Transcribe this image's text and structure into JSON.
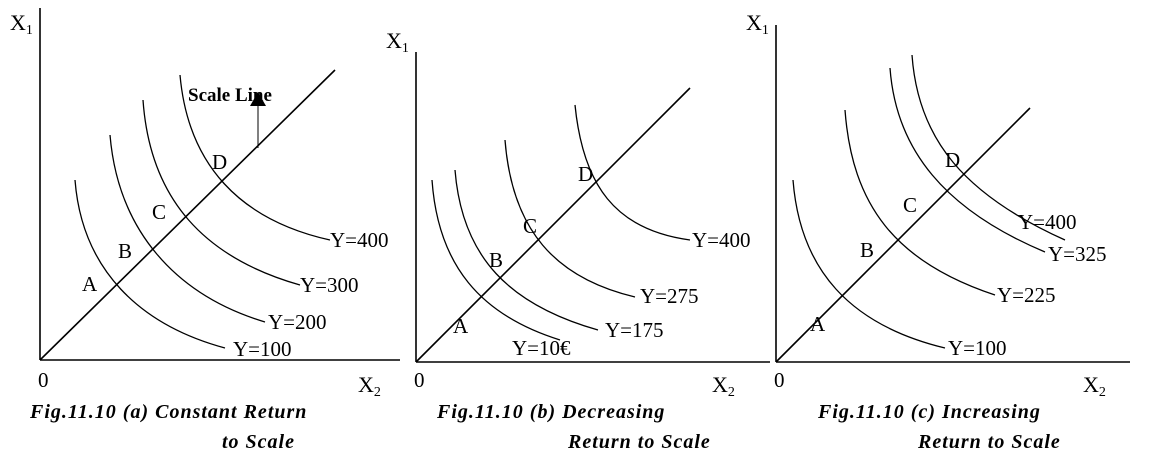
{
  "panels": [
    {
      "id": "a",
      "y_axis_label": "X",
      "y_axis_sub": "1",
      "x_axis_label": "X",
      "x_axis_sub": "2",
      "origin_label": "0",
      "points": [
        "A",
        "B",
        "C",
        "D"
      ],
      "curve_labels": [
        "Y=100",
        "Y=200",
        "Y=300",
        "Y=400"
      ],
      "caption_line1": "Fig.11.10 (a) Constant Return",
      "caption_line2": "to Scale",
      "scale_line_label": "Scale Line"
    },
    {
      "id": "b",
      "y_axis_label": "X",
      "y_axis_sub": "1",
      "x_axis_label": "X",
      "x_axis_sub": "2",
      "origin_label": "0",
      "points": [
        "A",
        "B",
        "C",
        "D"
      ],
      "curve_labels": [
        "Y=10€",
        "Y=175",
        "Y=275",
        "Y=400"
      ],
      "caption_line1": "Fig.11.10 (b) Decreasing",
      "caption_line2": "Return to Scale"
    },
    {
      "id": "c",
      "y_axis_label": "X",
      "y_axis_sub": "1",
      "x_axis_label": "X",
      "x_axis_sub": "2",
      "origin_label": "0",
      "points": [
        "A",
        "B",
        "C",
        "D"
      ],
      "curve_labels": [
        "Y=100",
        "Y=225",
        "Y=325",
        "Y=400"
      ],
      "caption_line1": "Fig.11.10 (c) Increasing",
      "caption_line2": "Return to Scale"
    }
  ]
}
